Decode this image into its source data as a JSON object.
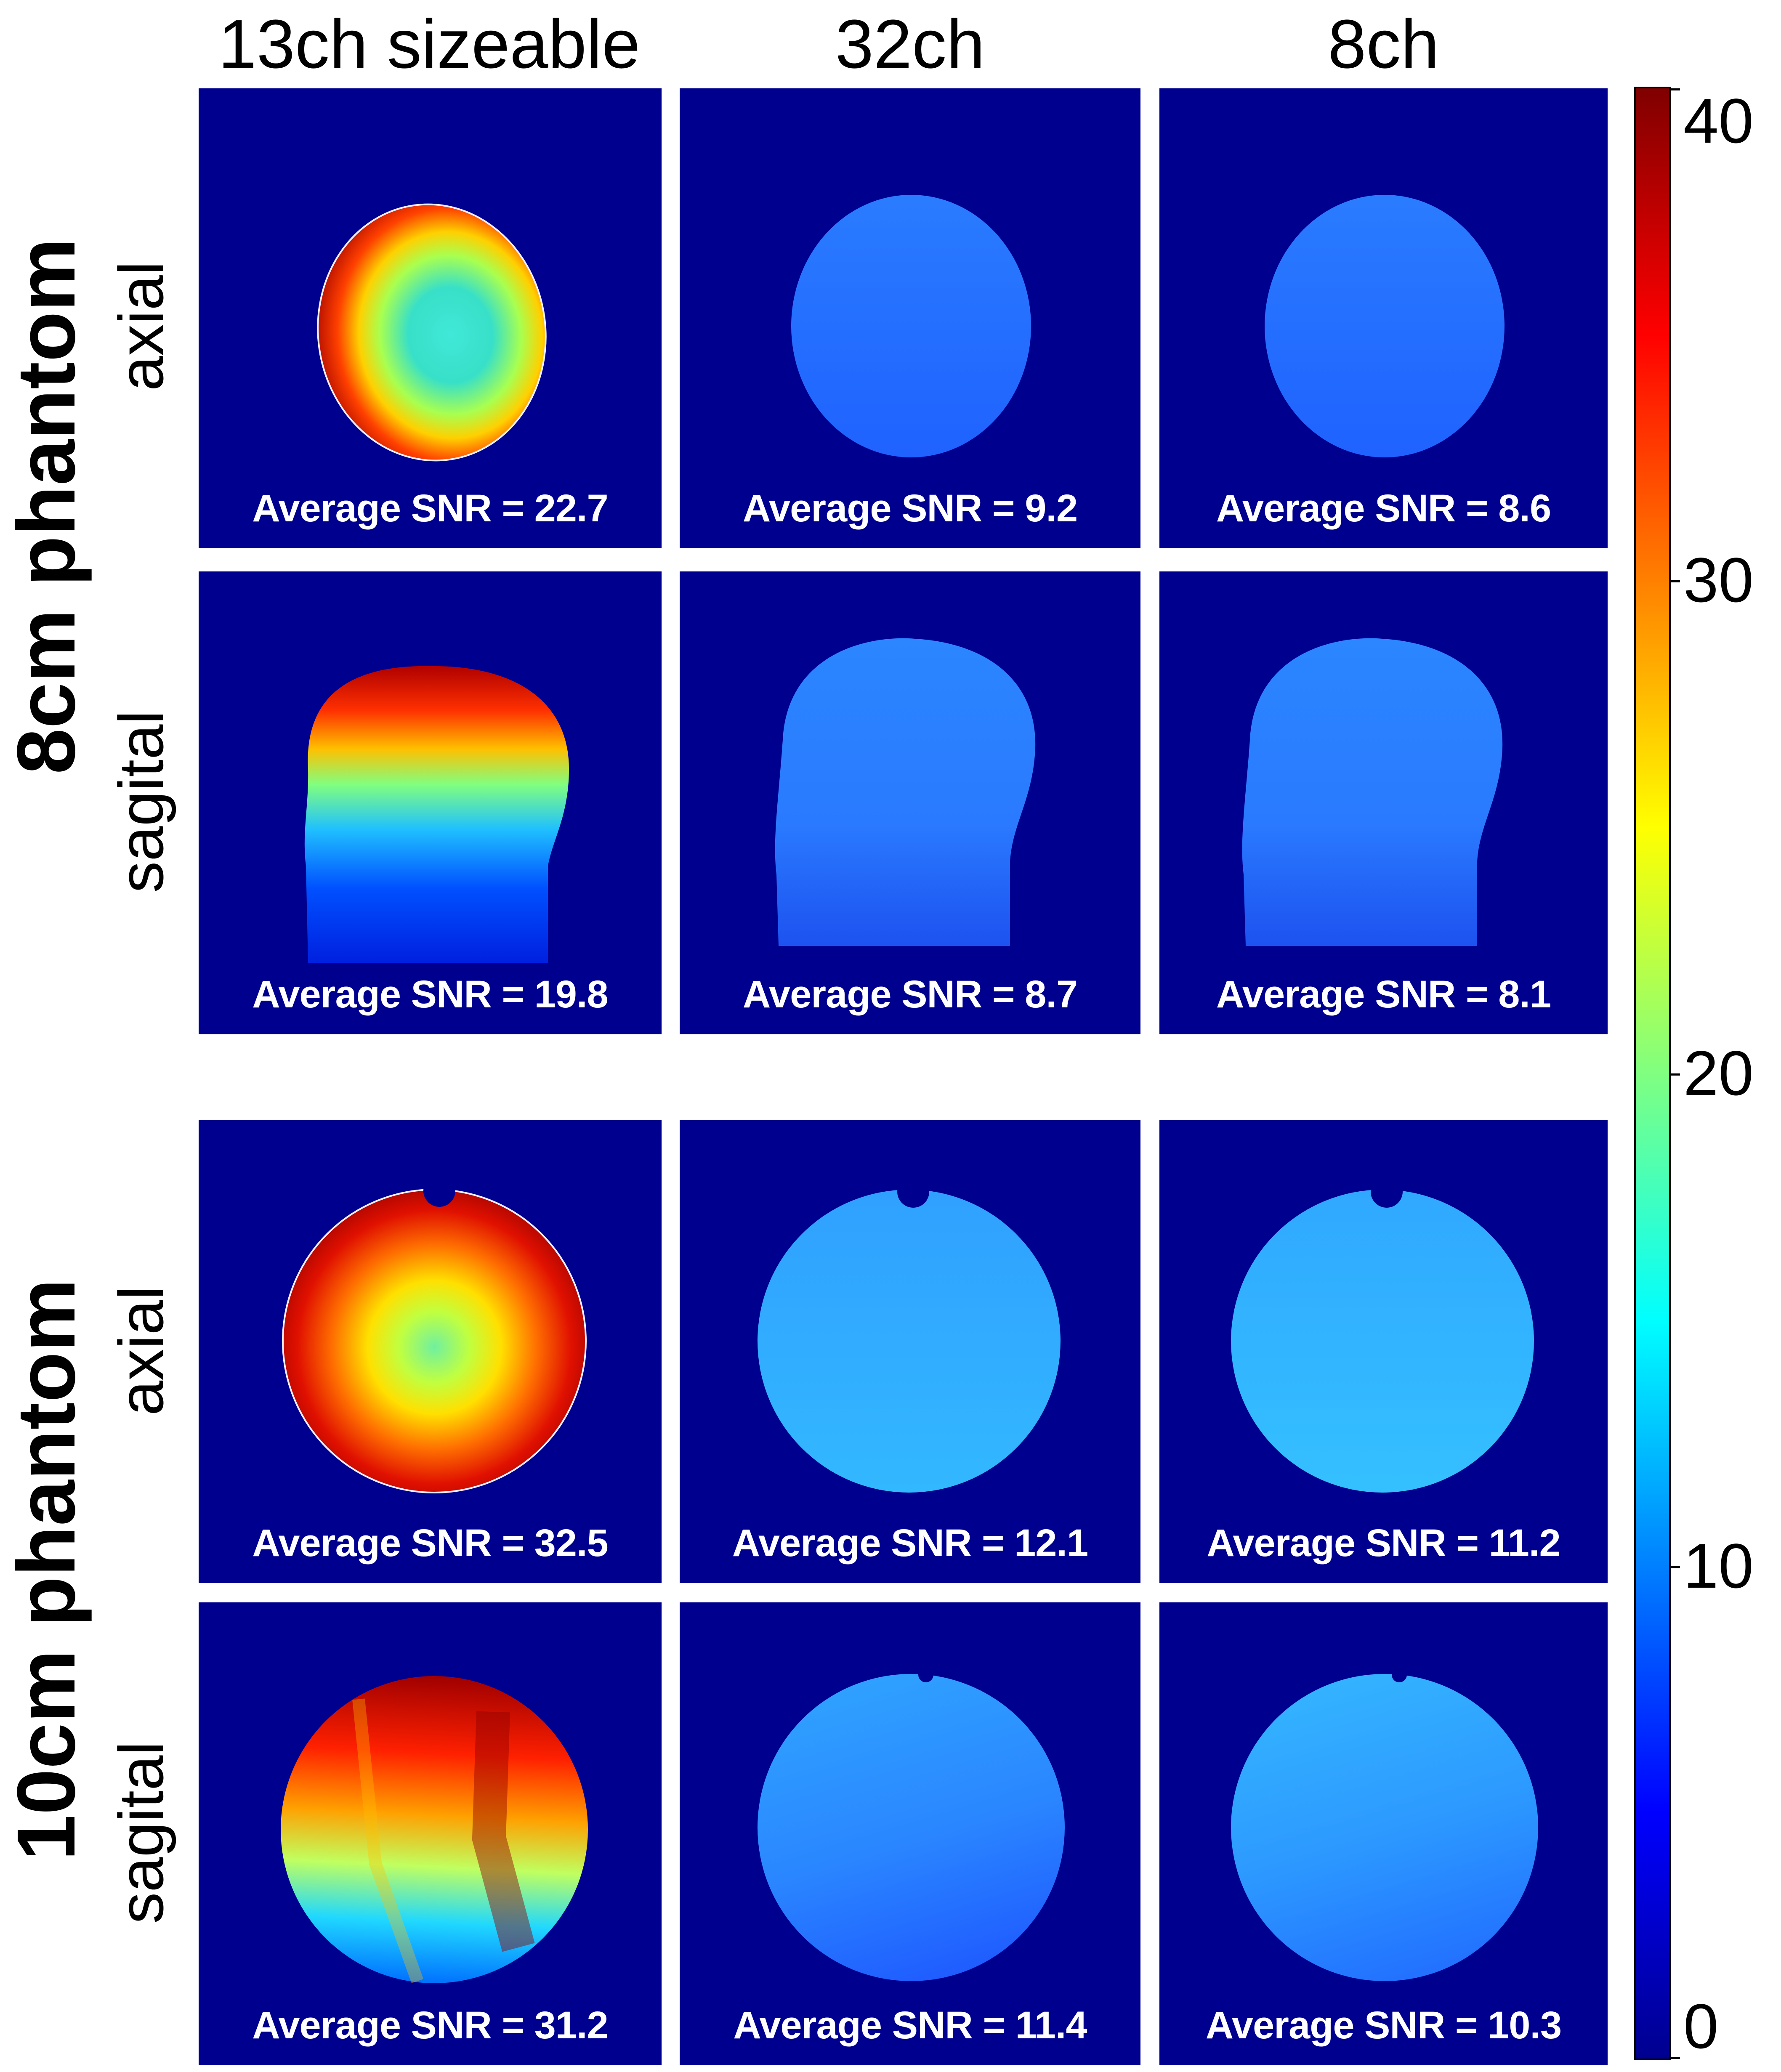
{
  "columns": {
    "c1": "13ch sizeable",
    "c2": "32ch",
    "c3": "8ch"
  },
  "groups": {
    "g1": "8cm phantom",
    "g2": "10cm phantom"
  },
  "rows": {
    "r1": "axial",
    "r2": "sagital",
    "r3": "axial",
    "r4": "sagital"
  },
  "panels": {
    "r1c1": "Average SNR = 22.7",
    "r1c2": "Average SNR = 9.2",
    "r1c3": "Average SNR = 8.6",
    "r2c1": "Average SNR = 19.8",
    "r2c2": "Average SNR = 8.7",
    "r2c3": "Average SNR = 8.1",
    "r3c1": "Average SNR = 32.5",
    "r3c2": "Average SNR = 12.1",
    "r3c3": "Average SNR = 11.2",
    "r4c1": "Average SNR = 31.2",
    "r4c2": "Average SNR = 11.4",
    "r4c3": "Average SNR = 10.3"
  },
  "colorbar": {
    "ticks": [
      "40",
      "30",
      "20",
      "10",
      "0"
    ],
    "colors": [
      "#00008f",
      "#0000ff",
      "#0080ff",
      "#00ffff",
      "#80ff80",
      "#ffff00",
      "#ff8000",
      "#ff0000",
      "#800000"
    ]
  }
}
